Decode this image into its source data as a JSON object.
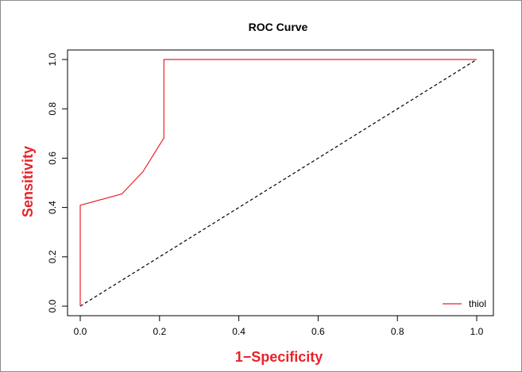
{
  "chart_data": {
    "type": "line",
    "title": "ROC Curve",
    "xlabel": "1−Specificity",
    "ylabel": "Sensitivity",
    "label_color": "#e8232a",
    "xlim": [
      0,
      1
    ],
    "ylim": [
      0,
      1
    ],
    "x_ticks": [
      "0.0",
      "0.2",
      "0.4",
      "0.6",
      "0.8",
      "1.0"
    ],
    "y_ticks": [
      "0.0",
      "0.2",
      "0.4",
      "0.6",
      "0.8",
      "1.0"
    ],
    "grid": false,
    "legend": {
      "position": "bottom-right",
      "entries": [
        "thiol"
      ]
    },
    "series": [
      {
        "name": "thiol",
        "color": "#e8232a",
        "x": [
          0.0,
          0.0,
          0.105,
          0.158,
          0.211,
          0.211,
          1.0
        ],
        "y": [
          0.0,
          0.409,
          0.455,
          0.545,
          0.682,
          1.0,
          1.0
        ]
      }
    ],
    "reference_line": {
      "x": [
        0,
        1
      ],
      "y": [
        0,
        1
      ],
      "style": "dashed",
      "color": "#000000"
    }
  }
}
